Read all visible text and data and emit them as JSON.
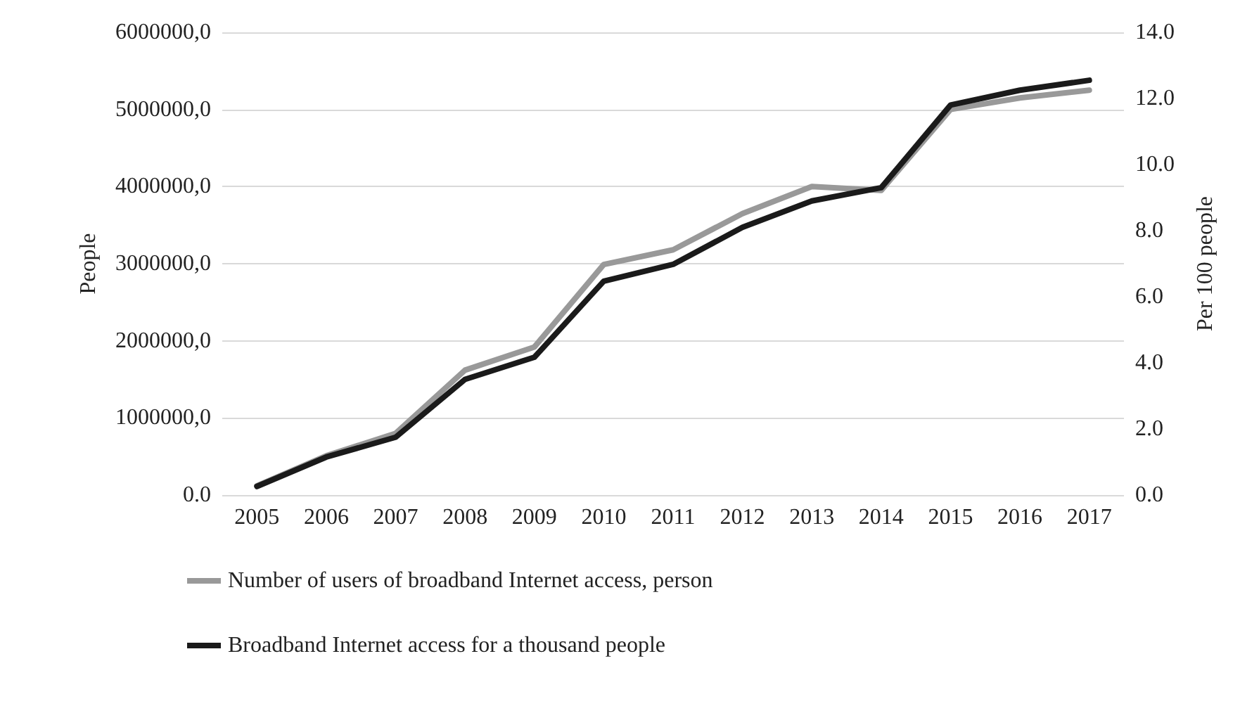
{
  "chart_data": {
    "type": "line",
    "ylabel": "People",
    "y2label": "Per 100 people",
    "categories": [
      "2005",
      "2006",
      "2007",
      "2008",
      "2009",
      "2010",
      "2011",
      "2012",
      "2013",
      "2014",
      "2015",
      "2016",
      "2017"
    ],
    "series": [
      {
        "name": "Number of users of broadband Internet access, person",
        "color": "#999999",
        "values": [
          120000,
          510000,
          800000,
          1620000,
          1920000,
          2990000,
          3180000,
          3650000,
          4000000,
          3950000,
          5000000,
          5150000,
          5250000
        ]
      },
      {
        "name": "Broadband Internet access for a thousand people",
        "color": "#1a1a1a",
        "axis": "y2",
        "values": [
          0.26,
          1.15,
          1.75,
          3.5,
          4.17,
          6.47,
          6.98,
          8.1,
          8.9,
          9.3,
          11.8,
          12.25,
          12.55
        ]
      }
    ],
    "ylim": [
      0,
      6000000
    ],
    "yticks": [
      {
        "value": 0,
        "label": "0.0"
      },
      {
        "value": 1000000,
        "label": "1000000,0"
      },
      {
        "value": 2000000,
        "label": "2000000,0"
      },
      {
        "value": 3000000,
        "label": "3000000,0"
      },
      {
        "value": 4000000,
        "label": "4000000,0"
      },
      {
        "value": 5000000,
        "label": "5000000,0"
      },
      {
        "value": 6000000,
        "label": "6000000,0"
      }
    ],
    "y2lim": [
      0,
      14
    ],
    "y2ticks": [
      {
        "value": 0,
        "label": "0.0"
      },
      {
        "value": 2,
        "label": "2.0"
      },
      {
        "value": 4,
        "label": "4.0"
      },
      {
        "value": 6,
        "label": "6.0"
      },
      {
        "value": 8,
        "label": "8.0"
      },
      {
        "value": 10,
        "label": "10.0"
      },
      {
        "value": 12,
        "label": "12.0"
      },
      {
        "value": 14,
        "label": "14.0"
      }
    ],
    "grid": "y",
    "legend": "bottom",
    "marker": "none",
    "line_style": "solid"
  }
}
